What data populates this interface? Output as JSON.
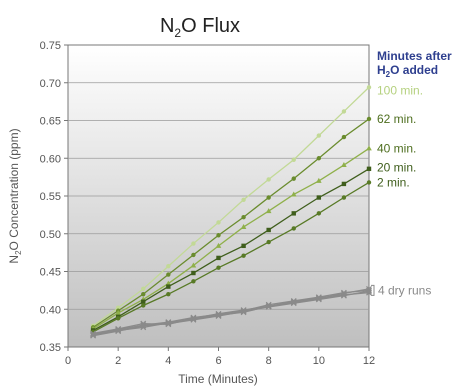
{
  "chart_data": {
    "type": "line",
    "title": {
      "main": "N",
      "sub": "2",
      "rest": "O Flux"
    },
    "xlabel": "Time (Minutes)",
    "ylabel": {
      "main": "N",
      "sub": "2",
      "rest": "O Concentration (ppm)"
    },
    "xlim": [
      0,
      12
    ],
    "ylim": [
      0.35,
      0.75
    ],
    "xticks": [
      "0",
      "2",
      "4",
      "6",
      "8",
      "10",
      "12"
    ],
    "yticks": [
      "0.35",
      "0.40",
      "0.45",
      "0.50",
      "0.55",
      "0.60",
      "0.65",
      "0.70",
      "0.75"
    ],
    "legend_title": {
      "line1": "Minutes after",
      "line2_main": "H",
      "line2_sub": "2",
      "line2_rest": "O added"
    },
    "legend_placement": "right",
    "grid": "horizontal",
    "series": [
      {
        "name": "100 min.",
        "color": "#c2d996",
        "marker": "circle",
        "x": [
          1,
          2,
          3,
          4,
          5,
          6,
          7,
          8,
          9,
          10,
          11,
          12
        ],
        "y": [
          0.378,
          0.402,
          0.427,
          0.457,
          0.487,
          0.515,
          0.545,
          0.572,
          0.598,
          0.63,
          0.662,
          0.694
        ]
      },
      {
        "name": "62 min.",
        "color": "#6a8c2e",
        "marker": "circle",
        "x": [
          1,
          2,
          3,
          4,
          5,
          6,
          7,
          8,
          9,
          10,
          11,
          12
        ],
        "y": [
          0.376,
          0.398,
          0.42,
          0.446,
          0.472,
          0.498,
          0.522,
          0.548,
          0.573,
          0.6,
          0.628,
          0.652
        ]
      },
      {
        "name": "40 min.",
        "color": "#8fb04a",
        "marker": "triangle",
        "x": [
          1,
          2,
          3,
          4,
          5,
          6,
          7,
          8,
          9,
          10,
          11,
          12
        ],
        "y": [
          0.374,
          0.395,
          0.413,
          0.434,
          0.458,
          0.484,
          0.509,
          0.53,
          0.552,
          0.57,
          0.591,
          0.613
        ]
      },
      {
        "name": "20 min.",
        "color": "#3f5e1c",
        "marker": "square",
        "x": [
          1,
          2,
          3,
          4,
          5,
          6,
          7,
          8,
          9,
          10,
          11,
          12
        ],
        "y": [
          0.372,
          0.39,
          0.41,
          0.43,
          0.448,
          0.468,
          0.484,
          0.505,
          0.527,
          0.548,
          0.566,
          0.586
        ]
      },
      {
        "name": "2 min.",
        "color": "#587a26",
        "marker": "circle",
        "x": [
          1,
          2,
          3,
          4,
          5,
          6,
          7,
          8,
          9,
          10,
          11,
          12
        ],
        "y": [
          0.37,
          0.388,
          0.405,
          0.42,
          0.437,
          0.455,
          0.471,
          0.489,
          0.507,
          0.527,
          0.548,
          0.568
        ]
      },
      {
        "name": "4 dry runs",
        "color": "#8a8a8a",
        "marker": "cross",
        "x": [
          1,
          2,
          3,
          4,
          5,
          6,
          7,
          8,
          9,
          10,
          11,
          12
        ],
        "y": [
          0.365,
          0.371,
          0.378,
          0.381,
          0.386,
          0.391,
          0.397,
          0.403,
          0.408,
          0.413,
          0.418,
          0.424
        ]
      },
      {
        "name": "4 dry runs",
        "color": "#8a8a8a",
        "marker": "cross",
        "x": [
          1,
          2,
          3,
          4,
          5,
          6,
          7,
          8,
          9,
          10,
          11,
          12
        ],
        "y": [
          0.368,
          0.374,
          0.381,
          0.38,
          0.388,
          0.394,
          0.399,
          0.404,
          0.41,
          0.414,
          0.421,
          0.427
        ]
      },
      {
        "name": "4 dry runs",
        "color": "#8a8a8a",
        "marker": "cross",
        "x": [
          1,
          2,
          3,
          4,
          5,
          6,
          7,
          8,
          9,
          10,
          11,
          12
        ],
        "y": [
          0.366,
          0.372,
          0.376,
          0.382,
          0.387,
          0.392,
          0.396,
          0.404,
          0.409,
          0.415,
          0.419,
          0.422
        ]
      },
      {
        "name": "4 dry runs",
        "color": "#8a8a8a",
        "marker": "cross",
        "x": [
          1,
          2,
          3,
          4,
          5,
          6,
          7,
          8,
          9,
          10,
          11,
          12
        ],
        "y": [
          0.367,
          0.373,
          0.379,
          0.383,
          0.389,
          0.393,
          0.398,
          0.406,
          0.411,
          0.416,
          0.422,
          0.425
        ]
      }
    ],
    "legend_entries": [
      {
        "label": "100 min.",
        "color": "#b5d17f",
        "y": 0.69
      },
      {
        "label": "62 min.",
        "color": "#4e6e1f",
        "y": 0.652
      },
      {
        "label": "40 min.",
        "color": "#4e6e1f",
        "y": 0.613
      },
      {
        "label": "20 min.",
        "color": "#3f5e1c",
        "y": 0.588
      },
      {
        "label": "2 min.",
        "color": "#3f5e1c",
        "y": 0.568
      },
      {
        "label": "4 dry runs",
        "color": "#8a8a8a",
        "y": 0.425
      }
    ],
    "colors": {
      "legend_title": "#2e3f8f",
      "axis": "#555555",
      "title": "#222222"
    }
  }
}
